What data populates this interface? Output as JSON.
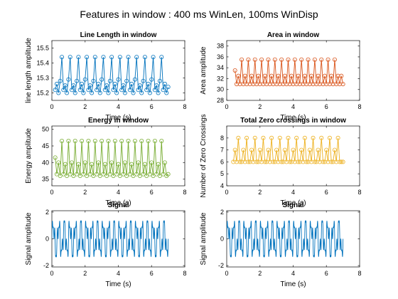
{
  "figure_title": "Features in window : 400 ms WinLen, 100ms WinDisp",
  "chart_data": [
    {
      "type": "line",
      "title": "Line Length in window",
      "xlabel": "Time (s)",
      "ylabel": "line length amplitude",
      "xlim": [
        0,
        8
      ],
      "ylim": [
        15.15,
        15.55
      ],
      "xticks": [
        0,
        2,
        4,
        6,
        8
      ],
      "yticks": [
        15.2,
        15.3,
        15.4,
        15.5
      ],
      "color": "#0072BD",
      "marker": "circle",
      "series": [
        {
          "x": [
            0.2,
            0.3,
            0.4,
            0.5,
            0.6,
            0.7,
            0.8,
            0.9,
            1.0,
            1.1,
            1.2,
            1.3,
            1.4,
            1.5,
            1.6,
            1.7,
            1.8,
            1.9,
            2.0,
            2.1,
            2.2,
            2.3,
            2.4,
            2.5,
            2.6,
            2.7,
            2.8,
            2.9,
            3.0,
            3.1,
            3.2,
            3.3,
            3.4,
            3.5,
            3.6,
            3.7,
            3.8,
            3.9,
            4.0,
            4.1,
            4.2,
            4.3,
            4.4,
            4.5,
            4.6,
            4.7,
            4.8,
            4.9,
            5.0,
            5.1,
            5.2,
            5.3,
            5.4,
            5.5,
            5.6,
            5.7,
            5.8,
            5.9,
            6.0,
            6.1,
            6.2,
            6.3,
            6.4,
            6.5,
            6.6,
            6.7,
            6.8,
            6.9,
            7.0
          ],
          "y": [
            15.22,
            15.26,
            15.2,
            15.28,
            15.44,
            15.22,
            15.25,
            15.2,
            15.29,
            15.44,
            15.22,
            15.25,
            15.2,
            15.28,
            15.44,
            15.22,
            15.26,
            15.2,
            15.29,
            15.44,
            15.22,
            15.25,
            15.2,
            15.28,
            15.44,
            15.22,
            15.26,
            15.2,
            15.29,
            15.44,
            15.22,
            15.25,
            15.2,
            15.28,
            15.44,
            15.22,
            15.26,
            15.2,
            15.29,
            15.44,
            15.22,
            15.25,
            15.2,
            15.28,
            15.44,
            15.22,
            15.26,
            15.2,
            15.29,
            15.44,
            15.22,
            15.25,
            15.2,
            15.28,
            15.44,
            15.22,
            15.26,
            15.2,
            15.29,
            15.44,
            15.22,
            15.25,
            15.2,
            15.28,
            15.44,
            15.22,
            15.26,
            15.2,
            15.24
          ]
        }
      ]
    },
    {
      "type": "line",
      "title": "Area in window",
      "xlabel": "Time (s)",
      "ylabel": "Area amplitude",
      "xlim": [
        0,
        8
      ],
      "ylim": [
        28,
        39
      ],
      "xticks": [
        0,
        2,
        4,
        6,
        8
      ],
      "yticks": [
        28,
        30,
        32,
        34,
        36,
        38
      ],
      "color": "#D95319",
      "marker": "circle",
      "series": [
        {
          "x": [
            0.5,
            0.6,
            0.7,
            0.8,
            0.9,
            1.0,
            1.1,
            1.2,
            1.3,
            1.4,
            1.5,
            1.6,
            1.7,
            1.8,
            1.9,
            2.0,
            2.1,
            2.2,
            2.3,
            2.4,
            2.5,
            2.6,
            2.7,
            2.8,
            2.9,
            3.0,
            3.1,
            3.2,
            3.3,
            3.4,
            3.5,
            3.6,
            3.7,
            3.8,
            3.9,
            4.0,
            4.1,
            4.2,
            4.3,
            4.4,
            4.5,
            4.6,
            4.7,
            4.8,
            4.9,
            5.0,
            5.1,
            5.2,
            5.3,
            5.4,
            5.5,
            5.6,
            5.7,
            5.8,
            5.9,
            6.0,
            6.1,
            6.2,
            6.3,
            6.4,
            6.5,
            6.6,
            6.7,
            6.8,
            6.9,
            7.0
          ],
          "y": [
            33.5,
            31.0,
            32.5,
            31.0,
            35.5,
            31.0,
            32.5,
            31.0,
            35.5,
            31.0,
            32.5,
            31.0,
            35.5,
            31.0,
            32.5,
            31.0,
            35.5,
            31.0,
            32.5,
            31.0,
            35.5,
            31.0,
            32.5,
            31.0,
            35.5,
            31.0,
            32.5,
            31.0,
            35.5,
            31.0,
            32.5,
            31.0,
            35.5,
            31.0,
            32.5,
            31.0,
            35.5,
            31.0,
            32.5,
            31.0,
            35.5,
            31.0,
            32.5,
            31.0,
            35.5,
            31.0,
            32.5,
            31.0,
            35.5,
            31.0,
            32.5,
            31.0,
            35.5,
            31.0,
            32.5,
            31.0,
            35.5,
            31.0,
            32.5,
            31.0,
            35.5,
            31.0,
            32.5,
            31.0,
            32.5,
            31.0
          ]
        }
      ]
    },
    {
      "type": "line",
      "title": "Energy in window",
      "xlabel": "Time (s)",
      "ylabel": "Energy amplitude",
      "xlim": [
        0,
        8
      ],
      "ylim": [
        33,
        51
      ],
      "xticks": [
        0,
        2,
        4,
        6,
        8
      ],
      "yticks": [
        35,
        40,
        45,
        50
      ],
      "color": "#77AC30",
      "marker": "circle",
      "series": [
        {
          "x": [
            0.2,
            0.3,
            0.4,
            0.5,
            0.6,
            0.7,
            0.8,
            0.9,
            1.0,
            1.1,
            1.2,
            1.3,
            1.4,
            1.5,
            1.6,
            1.7,
            1.8,
            1.9,
            2.0,
            2.1,
            2.2,
            2.3,
            2.4,
            2.5,
            2.6,
            2.7,
            2.8,
            2.9,
            3.0,
            3.1,
            3.2,
            3.3,
            3.4,
            3.5,
            3.6,
            3.7,
            3.8,
            3.9,
            4.0,
            4.1,
            4.2,
            4.3,
            4.4,
            4.5,
            4.6,
            4.7,
            4.8,
            4.9,
            5.0,
            5.1,
            5.2,
            5.3,
            5.4,
            5.5,
            5.6,
            5.7,
            5.8,
            5.9,
            6.0,
            6.1,
            6.2,
            6.3,
            6.4,
            6.5,
            6.6,
            6.7,
            6.8,
            6.9,
            7.0
          ],
          "y": [
            41.5,
            36.5,
            40.0,
            36.0,
            46.5,
            36.5,
            39.5,
            36.0,
            46.5,
            36.5,
            40.0,
            36.0,
            46.5,
            36.5,
            39.5,
            36.0,
            46.5,
            36.5,
            40.0,
            36.0,
            46.5,
            36.5,
            39.5,
            36.0,
            46.5,
            36.5,
            40.0,
            36.0,
            46.5,
            36.5,
            39.5,
            36.0,
            46.5,
            36.5,
            40.0,
            36.0,
            46.5,
            36.5,
            39.5,
            36.0,
            46.5,
            36.5,
            40.0,
            36.0,
            46.5,
            36.5,
            39.5,
            36.0,
            46.5,
            36.5,
            40.0,
            36.0,
            46.5,
            36.5,
            39.5,
            36.0,
            46.5,
            36.5,
            40.0,
            36.0,
            46.5,
            36.5,
            39.5,
            36.0,
            46.5,
            36.5,
            40.0,
            36.0,
            36.5
          ]
        }
      ]
    },
    {
      "type": "line",
      "title": "Total Zero crossings in window",
      "xlabel": "Time (s)",
      "ylabel": "Number of Zero Crossings",
      "xlim": [
        0,
        8
      ],
      "ylim": [
        4,
        9
      ],
      "xticks": [
        0,
        2,
        4,
        6,
        8
      ],
      "yticks": [
        4,
        5,
        6,
        7,
        8
      ],
      "color": "#EDB120",
      "marker": "circle",
      "series": [
        {
          "x": [
            0.4,
            0.5,
            0.6,
            0.7,
            0.8,
            0.9,
            1.0,
            1.1,
            1.2,
            1.3,
            1.4,
            1.5,
            1.6,
            1.7,
            1.8,
            1.9,
            2.0,
            2.1,
            2.2,
            2.3,
            2.4,
            2.5,
            2.6,
            2.7,
            2.8,
            2.9,
            3.0,
            3.1,
            3.2,
            3.3,
            3.4,
            3.5,
            3.6,
            3.7,
            3.8,
            3.9,
            4.0,
            4.1,
            4.2,
            4.3,
            4.4,
            4.5,
            4.6,
            4.7,
            4.8,
            4.9,
            5.0,
            5.1,
            5.2,
            5.3,
            5.4,
            5.5,
            5.6,
            5.7,
            5.8,
            5.9,
            6.0,
            6.1,
            6.2,
            6.3,
            6.4,
            6.5,
            6.6,
            6.7,
            6.8,
            6.9,
            7.0
          ],
          "y": [
            6,
            7,
            6,
            8,
            6,
            6,
            7,
            6,
            8,
            6,
            6,
            7,
            6,
            8,
            6,
            6,
            7,
            6,
            8,
            6,
            6,
            7,
            6,
            8,
            6,
            6,
            7,
            6,
            8,
            6,
            6,
            7,
            6,
            8,
            6,
            6,
            7,
            6,
            8,
            6,
            6,
            7,
            6,
            8,
            6,
            6,
            7,
            6,
            8,
            6,
            6,
            7,
            6,
            8,
            6,
            6,
            7,
            6,
            8,
            6,
            6,
            7,
            6,
            8,
            6,
            6,
            6
          ]
        }
      ]
    },
    {
      "type": "line",
      "title": "Signal",
      "xlabel": "Time (s)",
      "ylabel": "Signal amplitude",
      "xlim": [
        0,
        8
      ],
      "ylim": [
        -2.1,
        2.1
      ],
      "xticks": [
        0,
        2,
        4,
        6,
        8
      ],
      "yticks": [
        -2,
        0,
        2
      ],
      "color": "#0072BD",
      "marker": "none",
      "series": [
        {
          "waveform": "sum of sinusoids",
          "x_range": [
            0,
            7
          ],
          "components": [
            {
              "amplitude": 1.0,
              "frequency_hz": 3
            },
            {
              "amplitude": 0.6,
              "frequency_hz": 7
            },
            {
              "amplitude": 0.35,
              "frequency_hz": 13
            }
          ]
        }
      ]
    },
    {
      "type": "line",
      "title": "Signal",
      "xlabel": "Time (s)",
      "ylabel": "Signal amplitude",
      "xlim": [
        0,
        8
      ],
      "ylim": [
        -2.1,
        2.1
      ],
      "xticks": [
        0,
        2,
        4,
        6,
        8
      ],
      "yticks": [
        -2,
        0,
        2
      ],
      "color": "#0072BD",
      "marker": "none",
      "series": [
        {
          "waveform": "sum of sinusoids",
          "x_range": [
            0,
            7
          ],
          "components": [
            {
              "amplitude": 1.0,
              "frequency_hz": 3
            },
            {
              "amplitude": 0.6,
              "frequency_hz": 7
            },
            {
              "amplitude": 0.35,
              "frequency_hz": 13
            }
          ]
        }
      ]
    }
  ]
}
